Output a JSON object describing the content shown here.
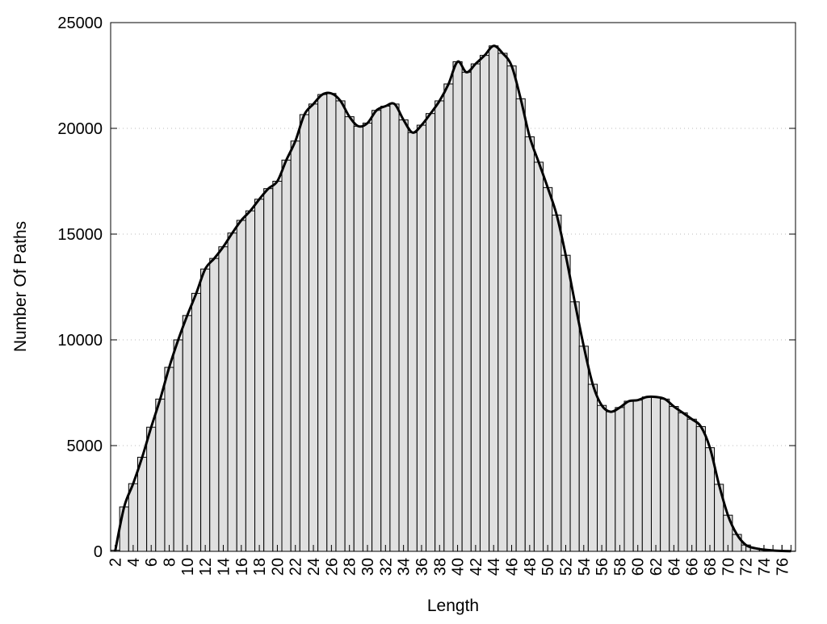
{
  "chart_data": {
    "type": "bar",
    "xlabel": "Length",
    "ylabel": "Number Of Paths",
    "ylim": [
      0,
      25000
    ],
    "yticks": [
      0,
      5000,
      10000,
      15000,
      20000,
      25000
    ],
    "xticks": [
      2,
      4,
      6,
      8,
      10,
      12,
      14,
      16,
      18,
      20,
      22,
      24,
      26,
      28,
      30,
      32,
      34,
      36,
      38,
      40,
      42,
      44,
      46,
      48,
      50,
      52,
      54,
      56,
      58,
      60,
      62,
      64,
      66,
      68,
      70,
      72,
      74,
      76
    ],
    "grid": "horizontal-dotted",
    "categories": [
      2,
      3,
      4,
      5,
      6,
      7,
      8,
      9,
      10,
      11,
      12,
      13,
      14,
      15,
      16,
      17,
      18,
      19,
      20,
      21,
      22,
      23,
      24,
      25,
      26,
      27,
      28,
      29,
      30,
      31,
      32,
      33,
      34,
      35,
      36,
      37,
      38,
      39,
      40,
      41,
      42,
      43,
      44,
      45,
      46,
      47,
      48,
      49,
      50,
      51,
      52,
      53,
      54,
      55,
      56,
      57,
      58,
      59,
      60,
      61,
      62,
      63,
      64,
      65,
      66,
      67,
      68,
      69,
      70,
      71,
      72,
      73,
      74,
      75,
      76,
      77
    ],
    "values": [
      50,
      2100,
      3200,
      4450,
      5870,
      7200,
      8700,
      10000,
      11150,
      12200,
      13350,
      13850,
      14400,
      15050,
      15650,
      16100,
      16650,
      17150,
      17500,
      18500,
      19400,
      20650,
      21150,
      21600,
      21650,
      21300,
      20550,
      20100,
      20250,
      20850,
      21050,
      21150,
      20400,
      19800,
      20150,
      20700,
      21300,
      22100,
      23150,
      22650,
      23050,
      23450,
      23900,
      23550,
      22950,
      21400,
      19600,
      18400,
      17200,
      15900,
      14000,
      11800,
      9700,
      7900,
      6900,
      6600,
      6800,
      7100,
      7150,
      7300,
      7300,
      7200,
      6850,
      6550,
      6250,
      5900,
      4900,
      3170,
      1710,
      800,
      300,
      150,
      80,
      40,
      20,
      10
    ],
    "bar_color": "#e0e0e0",
    "edge_color": "#000000",
    "overlay": "smoothed-line"
  }
}
